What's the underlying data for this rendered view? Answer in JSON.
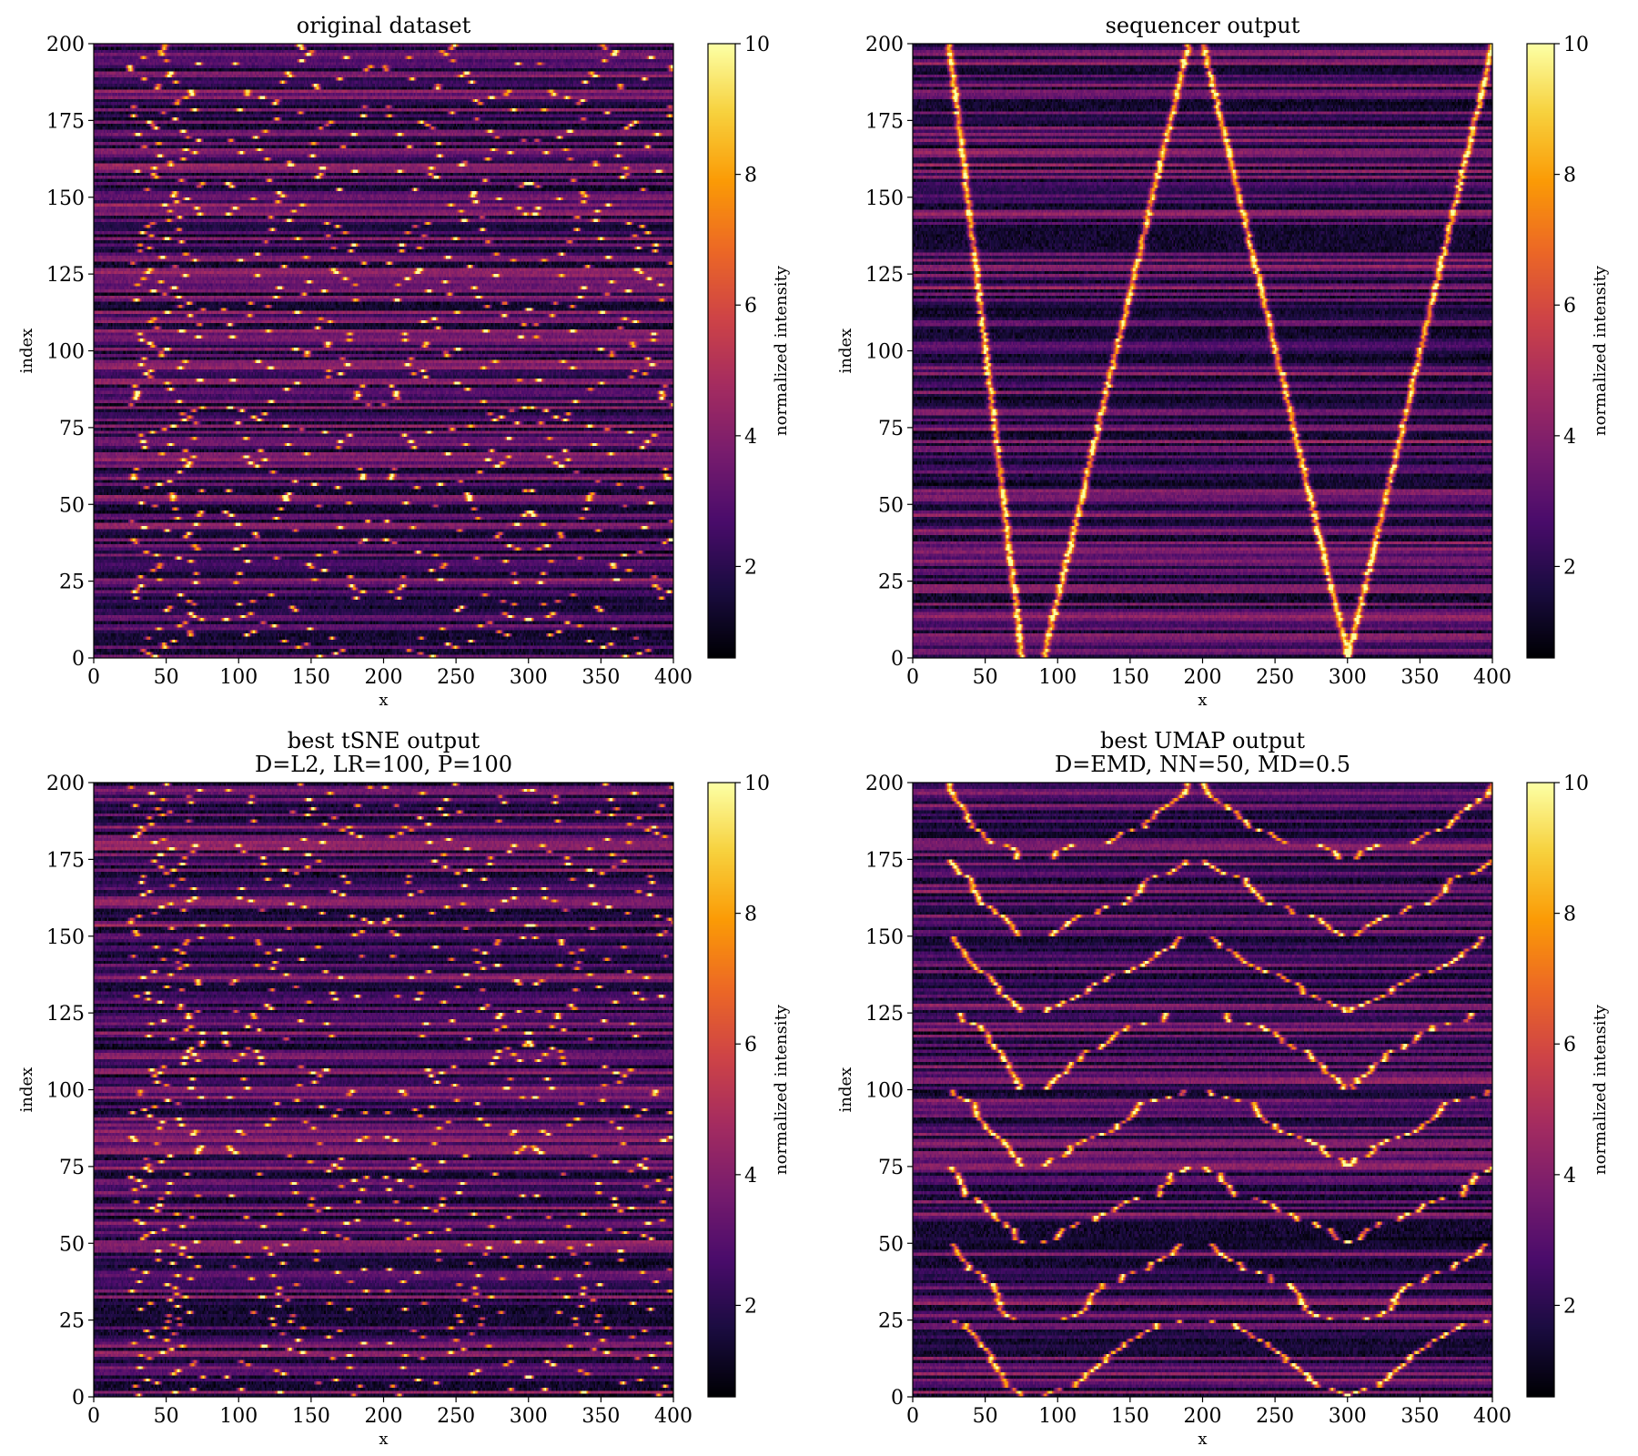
{
  "figure": {
    "background": "#ffffff"
  },
  "colormap": {
    "name": "inferno",
    "stops": [
      "#000004",
      "#1b0c41",
      "#4a0c6b",
      "#781c6d",
      "#a52c60",
      "#cf4446",
      "#ed6925",
      "#fb9b06",
      "#f7d13d",
      "#fcffa4"
    ]
  },
  "chart_data": [
    {
      "type": "heatmap",
      "title": "original dataset",
      "subtitle": "",
      "xlabel": "x",
      "ylabel": "index",
      "xlim": [
        0,
        400
      ],
      "ylim": [
        0,
        200
      ],
      "xticks": [
        "0",
        "50",
        "100",
        "150",
        "200",
        "250",
        "300",
        "350",
        "400"
      ],
      "yticks": [
        "0",
        "25",
        "50",
        "75",
        "100",
        "125",
        "150",
        "175",
        "200"
      ],
      "colorbar": {
        "label": "normalized intensity",
        "range": [
          0.6,
          10
        ],
        "ticks": [
          "2",
          "4",
          "6",
          "8",
          "10"
        ]
      },
      "pattern": "scrambled",
      "n_rows": 200,
      "n_cols": 400,
      "seed": 11,
      "tracks": [
        {
          "from_index": 0,
          "x_at_from": 75,
          "to_index": 200,
          "x_at_to": 25
        },
        {
          "from_index": 0,
          "x_at_from": 90,
          "to_index": 200,
          "x_at_to": 190
        },
        {
          "from_index": 0,
          "x_at_from": 300,
          "to_index": 200,
          "x_at_to": 200
        },
        {
          "from_index": 0,
          "x_at_from": 300,
          "to_index": 200,
          "x_at_to": 400
        }
      ]
    },
    {
      "type": "heatmap",
      "title": "sequencer output",
      "subtitle": "",
      "xlabel": "x",
      "ylabel": "index",
      "xlim": [
        0,
        400
      ],
      "ylim": [
        0,
        200
      ],
      "xticks": [
        "0",
        "50",
        "100",
        "150",
        "200",
        "250",
        "300",
        "350",
        "400"
      ],
      "yticks": [
        "0",
        "25",
        "50",
        "75",
        "100",
        "125",
        "150",
        "175",
        "200"
      ],
      "colorbar": {
        "label": "normalized intensity",
        "range": [
          0.6,
          10
        ],
        "ticks": [
          "2",
          "4",
          "6",
          "8",
          "10"
        ]
      },
      "pattern": "ordered",
      "n_rows": 200,
      "n_cols": 400,
      "seed": 23,
      "tracks": [
        {
          "from_index": 0,
          "x_at_from": 75,
          "to_index": 200,
          "x_at_to": 25
        },
        {
          "from_index": 0,
          "x_at_from": 90,
          "to_index": 200,
          "x_at_to": 190
        },
        {
          "from_index": 0,
          "x_at_from": 300,
          "to_index": 200,
          "x_at_to": 200
        },
        {
          "from_index": 0,
          "x_at_from": 300,
          "to_index": 200,
          "x_at_to": 400
        }
      ]
    },
    {
      "type": "heatmap",
      "title": "best tSNE output",
      "subtitle": "D=L2, LR=100, P=100",
      "xlabel": "x",
      "ylabel": "index",
      "xlim": [
        0,
        400
      ],
      "ylim": [
        0,
        200
      ],
      "xticks": [
        "0",
        "50",
        "100",
        "150",
        "200",
        "250",
        "300",
        "350",
        "400"
      ],
      "yticks": [
        "0",
        "25",
        "50",
        "75",
        "100",
        "125",
        "150",
        "175",
        "200"
      ],
      "colorbar": {
        "label": "normalized intensity",
        "range": [
          0.6,
          10
        ],
        "ticks": [
          "2",
          "4",
          "6",
          "8",
          "10"
        ]
      },
      "pattern": "scrambled",
      "n_rows": 200,
      "n_cols": 400,
      "seed": 37,
      "tracks": [
        {
          "from_index": 0,
          "x_at_from": 75,
          "to_index": 200,
          "x_at_to": 25
        },
        {
          "from_index": 0,
          "x_at_from": 90,
          "to_index": 200,
          "x_at_to": 190
        },
        {
          "from_index": 0,
          "x_at_from": 300,
          "to_index": 200,
          "x_at_to": 200
        },
        {
          "from_index": 0,
          "x_at_from": 300,
          "to_index": 200,
          "x_at_to": 400
        }
      ]
    },
    {
      "type": "heatmap",
      "title": "best UMAP output",
      "subtitle": "D=EMD, NN=50, MD=0.5",
      "xlabel": "x",
      "ylabel": "index",
      "xlim": [
        0,
        400
      ],
      "ylim": [
        0,
        200
      ],
      "xticks": [
        "0",
        "50",
        "100",
        "150",
        "200",
        "250",
        "300",
        "350",
        "400"
      ],
      "yticks": [
        "0",
        "25",
        "50",
        "75",
        "100",
        "125",
        "150",
        "175",
        "200"
      ],
      "colorbar": {
        "label": "normalized intensity",
        "range": [
          0.6,
          10
        ],
        "ticks": [
          "2",
          "4",
          "6",
          "8",
          "10"
        ]
      },
      "pattern": "partial",
      "n_rows": 200,
      "n_cols": 400,
      "seed": 53,
      "tracks": [
        {
          "from_index": 0,
          "x_at_from": 75,
          "to_index": 200,
          "x_at_to": 25
        },
        {
          "from_index": 0,
          "x_at_from": 90,
          "to_index": 200,
          "x_at_to": 190
        },
        {
          "from_index": 0,
          "x_at_from": 300,
          "to_index": 200,
          "x_at_to": 200
        },
        {
          "from_index": 0,
          "x_at_from": 300,
          "to_index": 200,
          "x_at_to": 400
        }
      ]
    }
  ]
}
